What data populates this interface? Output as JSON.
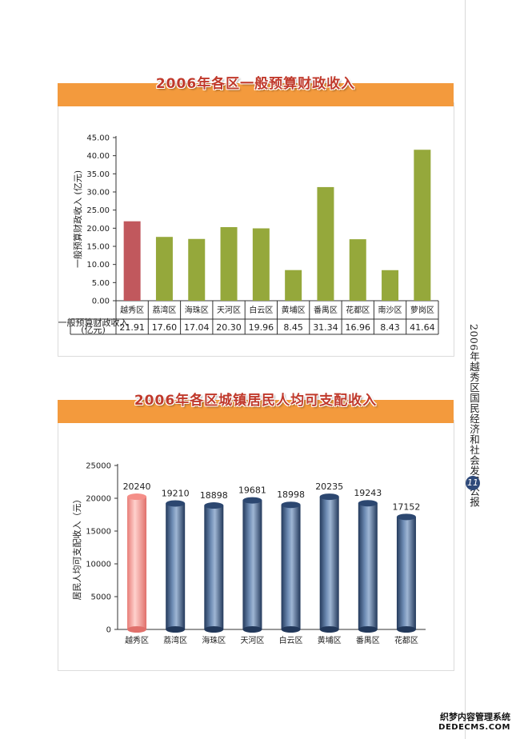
{
  "side_title": "2006年越秀区国民经济和社会发展公报",
  "page_number": "11",
  "watermark": {
    "line1": "织梦内容管理系统",
    "line2": "DEDECMS.COM"
  },
  "colors": {
    "banner": "#f39a3d",
    "highlight_bar1": "#c1585d",
    "bar1": "#95a83b",
    "highlight_bar2": "#f7a7a3",
    "bar2": "#3f5a7f"
  },
  "chart_data": [
    {
      "type": "bar",
      "title": "2006年各区一般预算财政收入",
      "ylabel": "一般预算财政收入 (亿元)",
      "ylim": [
        0,
        45
      ],
      "yticks": [
        "0.00",
        "5.00",
        "10.00",
        "15.00",
        "20.00",
        "25.00",
        "30.00",
        "35.00",
        "40.00",
        "45.00"
      ],
      "categories": [
        "越秀区",
        "荔湾区",
        "海珠区",
        "天河区",
        "白云区",
        "黄埔区",
        "番禺区",
        "花都区",
        "南沙区",
        "萝岗区"
      ],
      "values": [
        21.91,
        17.6,
        17.04,
        20.3,
        19.96,
        8.45,
        31.34,
        16.96,
        8.43,
        41.64
      ],
      "value_labels": [
        "21.91",
        "17.60",
        "17.04",
        "20.30",
        "19.96",
        "8.45",
        "31.34",
        "16.96",
        "8.43",
        "41.64"
      ],
      "table_row_label": "一般预算财政收入(亿元)",
      "highlight_index": 0,
      "grid": false
    },
    {
      "type": "bar",
      "title": "2006年各区城镇居民人均可支配收入",
      "ylabel": "居民人均可支配收入（元）",
      "ylim": [
        0,
        25000
      ],
      "yticks": [
        "0",
        "5000",
        "10000",
        "15000",
        "20000",
        "25000"
      ],
      "categories": [
        "越秀区",
        "荔湾区",
        "海珠区",
        "天河区",
        "白云区",
        "黄埔区",
        "番禺区",
        "花都区"
      ],
      "values": [
        20240,
        19210,
        18898,
        19681,
        18998,
        20235,
        19243,
        17152
      ],
      "value_labels": [
        "20240",
        "19210",
        "18898",
        "19681",
        "18998",
        "20235",
        "19243",
        "17152"
      ],
      "highlight_index": 0,
      "grid": false
    }
  ]
}
